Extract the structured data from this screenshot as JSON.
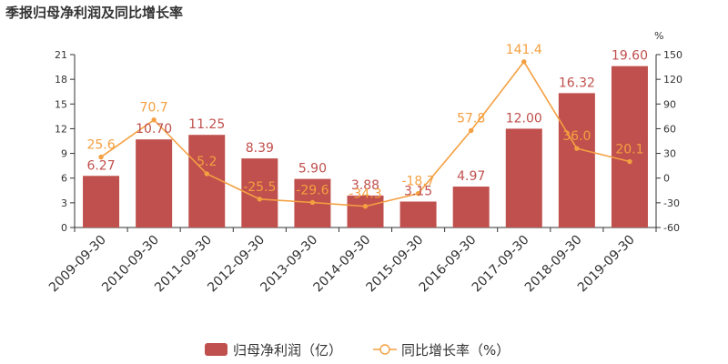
{
  "title": "季报归母净利润及同比增长率",
  "chart_data": {
    "type": "bar",
    "title": "季报归母净利润及同比增长率",
    "categories": [
      "2009-09-30",
      "2010-09-30",
      "2011-09-30",
      "2012-09-30",
      "2013-09-30",
      "2014-09-30",
      "2015-09-30",
      "2016-09-30",
      "2017-09-30",
      "2018-09-30",
      "2019-09-30"
    ],
    "series": [
      {
        "name": "归母净利润（亿）",
        "type": "bar",
        "axis": "left",
        "values": [
          6.27,
          10.7,
          11.25,
          8.39,
          5.9,
          3.88,
          3.15,
          4.97,
          12.0,
          16.32,
          19.6
        ],
        "labels": [
          "6.27",
          "10.70",
          "11.25",
          "8.39",
          "5.90",
          "3.88",
          "3.15",
          "4.97",
          "12.00",
          "16.32",
          "19.60"
        ],
        "color": "#c0504d"
      },
      {
        "name": "同比增长率（%）",
        "type": "line",
        "axis": "right",
        "values": [
          25.6,
          70.7,
          5.2,
          -25.5,
          -29.6,
          -34.3,
          -18.7,
          57.8,
          141.4,
          36.0,
          20.1
        ],
        "labels": [
          "25.6",
          "70.7",
          "5.2",
          "-25.5",
          "-29.6",
          "-34.3",
          "-18.7",
          "57.8",
          "141.4",
          "36.0",
          "20.1"
        ],
        "color": "#f4a041"
      }
    ],
    "y_left": {
      "min": 0,
      "max": 21,
      "ticks": [
        0,
        3,
        6,
        9,
        12,
        15,
        18,
        21
      ]
    },
    "y_right": {
      "min": -60,
      "max": 150,
      "unit": "%",
      "ticks": [
        -60,
        -30,
        0,
        30,
        60,
        90,
        120,
        150
      ]
    },
    "legend": {
      "placement": "bottom"
    },
    "grid": false
  }
}
